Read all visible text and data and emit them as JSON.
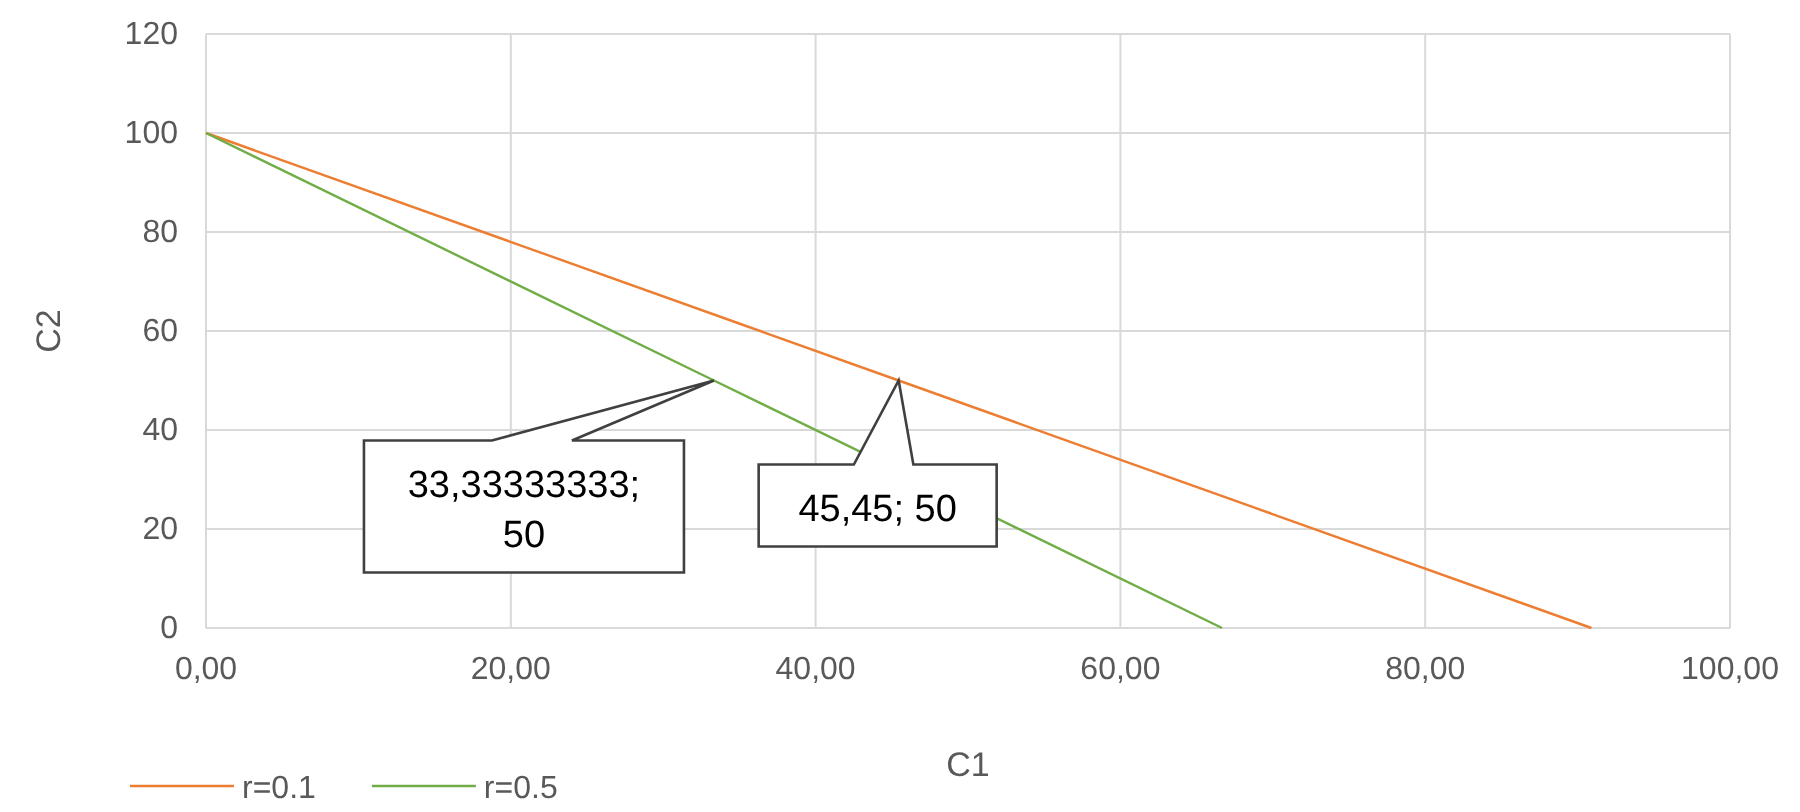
{
  "chart_data": {
    "type": "line",
    "xlabel": "C1",
    "ylabel": "C2",
    "xlim": [
      0,
      100
    ],
    "ylim": [
      0,
      120
    ],
    "xticks": [
      {
        "value": 0,
        "label": "0,00"
      },
      {
        "value": 20,
        "label": "20,00"
      },
      {
        "value": 40,
        "label": "40,00"
      },
      {
        "value": 60,
        "label": "60,00"
      },
      {
        "value": 80,
        "label": "80,00"
      },
      {
        "value": 100,
        "label": "100,00"
      }
    ],
    "yticks": [
      0,
      20,
      40,
      60,
      80,
      100,
      120
    ],
    "grid": true,
    "legend": "bottom left",
    "marker": "none",
    "line_style": "solid",
    "series": [
      {
        "name": "r=0.1",
        "color": "#ed7d31",
        "x": [
          0,
          45.45,
          90.91
        ],
        "values": [
          100,
          50,
          0
        ]
      },
      {
        "name": "r=0.5",
        "color": "#70ad47",
        "x": [
          0,
          33.33,
          66.67
        ],
        "values": [
          100,
          50,
          0
        ]
      }
    ],
    "annotations": [
      {
        "text": "33,33333333; 50",
        "x": 33.33,
        "y": 50
      },
      {
        "text": "45,45; 50",
        "x": 45.45,
        "y": 50
      }
    ]
  }
}
